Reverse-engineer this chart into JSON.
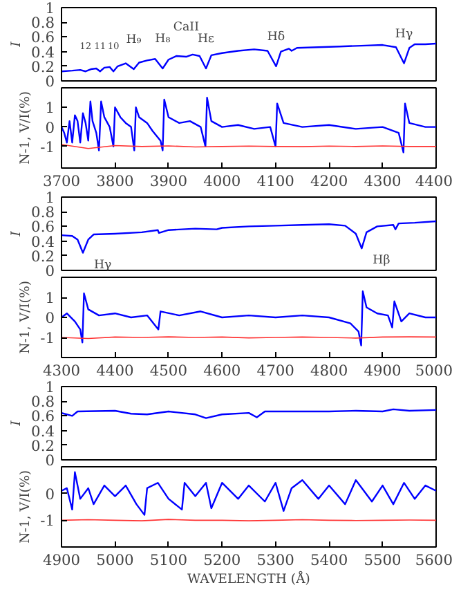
{
  "chart_data": [
    {
      "type": "line",
      "ylabel": "I",
      "xlim": [
        3700,
        4400
      ],
      "xticks": [
        3700,
        3800,
        3900,
        4000,
        4100,
        4200,
        4300,
        4400
      ],
      "ylim": [
        0,
        1
      ],
      "yticks": [
        0,
        0.2,
        0.4,
        0.6,
        0.8,
        1
      ],
      "tick_labels": "y",
      "grid": false,
      "annotations": [
        {
          "text": "12",
          "x": 3745,
          "y": 0.13
        },
        {
          "text": "11",
          "x": 3772,
          "y": 0.13
        },
        {
          "text": "10",
          "x": 3797,
          "y": 0.13
        },
        {
          "text": "H₉",
          "x": 3835,
          "y": 0.16
        },
        {
          "text": "H₈",
          "x": 3889,
          "y": 0.17
        },
        {
          "text": "CaII",
          "x": 3933,
          "y": 0.33
        },
        {
          "text": "Hε",
          "x": 3970,
          "y": 0.17
        },
        {
          "text": "Hδ",
          "x": 4101,
          "y": 0.2
        },
        {
          "text": "Hγ",
          "x": 4340,
          "y": 0.24
        }
      ],
      "series": [
        {
          "color": "#0000ff",
          "x": [
            3700,
            3720,
            3735,
            3745,
            3755,
            3765,
            3772,
            3780,
            3790,
            3797,
            3805,
            3820,
            3835,
            3845,
            3860,
            3875,
            3889,
            3900,
            3915,
            3933,
            3945,
            3958,
            3970,
            3980,
            4000,
            4030,
            4060,
            4085,
            4101,
            4110,
            4125,
            4130,
            4140,
            4180,
            4220,
            4260,
            4300,
            4325,
            4340,
            4350,
            4360,
            4380,
            4400
          ],
          "values": [
            0.13,
            0.14,
            0.15,
            0.13,
            0.16,
            0.17,
            0.13,
            0.18,
            0.19,
            0.13,
            0.2,
            0.24,
            0.16,
            0.25,
            0.28,
            0.3,
            0.17,
            0.29,
            0.34,
            0.33,
            0.36,
            0.34,
            0.17,
            0.35,
            0.38,
            0.41,
            0.43,
            0.41,
            0.2,
            0.4,
            0.44,
            0.41,
            0.45,
            0.46,
            0.47,
            0.48,
            0.49,
            0.46,
            0.24,
            0.45,
            0.5,
            0.5,
            0.51
          ]
        }
      ]
    },
    {
      "type": "line",
      "ylabel": "N-1, V/I(%)",
      "xlim": [
        3700,
        4400
      ],
      "xticks": [
        3700,
        3800,
        3900,
        4000,
        4100,
        4200,
        4300,
        4400
      ],
      "ylim": [
        -2.1,
        2
      ],
      "yticks": [
        -1,
        0,
        1
      ],
      "grid": false,
      "series": [
        {
          "color": "#0000ff",
          "x": [
            3700,
            3705,
            3710,
            3715,
            3720,
            3725,
            3730,
            3735,
            3740,
            3745,
            3750,
            3754,
            3758,
            3765,
            3770,
            3774,
            3780,
            3790,
            3797,
            3800,
            3810,
            3820,
            3830,
            3836,
            3839,
            3845,
            3860,
            3870,
            3885,
            3889,
            3892,
            3900,
            3920,
            3940,
            3960,
            3969,
            3972,
            3980,
            4000,
            4030,
            4060,
            4090,
            4100,
            4103,
            4115,
            4150,
            4200,
            4250,
            4300,
            4330,
            4339,
            4342,
            4350,
            4380,
            4400
          ],
          "values": [
            0,
            -0.3,
            -0.8,
            0.3,
            -0.8,
            0.6,
            0.3,
            -0.8,
            0.7,
            0.2,
            -0.7,
            1.3,
            0.3,
            -0.3,
            -1.2,
            1.3,
            0.5,
            0,
            -1,
            1,
            0.5,
            0.2,
            0,
            -1.2,
            1,
            0.5,
            0.2,
            -0.2,
            -0.7,
            -1.2,
            1.4,
            0.5,
            0.2,
            0.3,
            0,
            -1,
            1.5,
            0.3,
            0,
            0.1,
            -0.1,
            0,
            -1,
            1.2,
            0.2,
            0,
            0.1,
            -0.1,
            0,
            -0.3,
            -1.3,
            1.2,
            0.2,
            0,
            0
          ]
        },
        {
          "color": "#ff3333",
          "x": [
            3700,
            3750,
            3800,
            3850,
            3900,
            3950,
            4000,
            4050,
            4100,
            4150,
            4200,
            4250,
            4300,
            4350,
            4400
          ],
          "values": [
            -0.9,
            -1.1,
            -0.95,
            -1.0,
            -0.97,
            -1.02,
            -1.0,
            -0.98,
            -1.0,
            -1.01,
            -0.98,
            -1.0,
            -0.97,
            -1.0,
            -1.0
          ]
        }
      ]
    },
    {
      "type": "line",
      "ylabel": "I",
      "xlim": [
        4300,
        5000
      ],
      "xticks": [
        4300,
        4400,
        4500,
        4600,
        4700,
        4800,
        4900,
        5000
      ],
      "ylim": [
        0,
        1
      ],
      "yticks": [
        0,
        0.2,
        0.4,
        0.6,
        0.8,
        1
      ],
      "tick_labels": "y",
      "grid": false,
      "annotations": [
        {
          "text": "Hγ",
          "x": 4340,
          "y": 0.24
        },
        {
          "text": "Hβ",
          "x": 4861,
          "y": 0.3
        }
      ],
      "series": [
        {
          "color": "#0000ff",
          "x": [
            4300,
            4320,
            4330,
            4340,
            4350,
            4360,
            4400,
            4450,
            4480,
            4482,
            4500,
            4550,
            4590,
            4600,
            4650,
            4700,
            4750,
            4800,
            4830,
            4850,
            4861,
            4870,
            4890,
            4920,
            4924,
            4930,
            4960,
            5000
          ],
          "values": [
            0.48,
            0.47,
            0.42,
            0.24,
            0.42,
            0.49,
            0.5,
            0.52,
            0.55,
            0.51,
            0.55,
            0.57,
            0.56,
            0.58,
            0.6,
            0.61,
            0.62,
            0.63,
            0.61,
            0.5,
            0.3,
            0.52,
            0.6,
            0.62,
            0.56,
            0.64,
            0.65,
            0.67
          ]
        }
      ]
    },
    {
      "type": "line",
      "ylabel": "N-1, V/I(%)",
      "xlim": [
        4300,
        5000
      ],
      "xticks": [
        4300,
        4400,
        4500,
        4600,
        4700,
        4800,
        4900,
        5000
      ],
      "ylim": [
        -2,
        2
      ],
      "yticks": [
        -1,
        0,
        1
      ],
      "grid": false,
      "series": [
        {
          "color": "#0000ff",
          "x": [
            4300,
            4310,
            4325,
            4335,
            4339,
            4342,
            4350,
            4370,
            4400,
            4430,
            4460,
            4481,
            4485,
            4520,
            4560,
            4600,
            4650,
            4700,
            4750,
            4800,
            4840,
            4855,
            4860,
            4863,
            4870,
            4890,
            4910,
            4918,
            4922,
            4935,
            4950,
            4980,
            5000
          ],
          "values": [
            0,
            0.2,
            -0.2,
            -0.6,
            -1.25,
            1.2,
            0.4,
            0.1,
            0.2,
            0,
            0.1,
            -0.6,
            0.3,
            0.1,
            0.3,
            0,
            0.1,
            0,
            0.1,
            0,
            -0.3,
            -0.7,
            -1.4,
            1.3,
            0.5,
            0.2,
            0.1,
            -0.5,
            0.8,
            -0.2,
            0.2,
            0,
            0
          ]
        },
        {
          "color": "#ff3333",
          "x": [
            4300,
            4350,
            4400,
            4450,
            4500,
            4550,
            4600,
            4650,
            4700,
            4750,
            4800,
            4850,
            4900,
            4950,
            5000
          ],
          "values": [
            -1.0,
            -1.05,
            -0.98,
            -1.0,
            -0.97,
            -1.0,
            -0.98,
            -1.02,
            -1.0,
            -0.98,
            -1.0,
            -1.03,
            -0.98,
            -0.97,
            -0.98
          ]
        }
      ]
    },
    {
      "type": "line",
      "ylabel": "I",
      "xlim": [
        4900,
        5600
      ],
      "xticks": [
        4900,
        5000,
        5100,
        5200,
        5300,
        5400,
        5500,
        5600
      ],
      "ylim": [
        0,
        1
      ],
      "yticks": [
        0,
        0.2,
        0.4,
        0.6,
        0.8,
        1
      ],
      "tick_labels": "y",
      "grid": false,
      "series": [
        {
          "color": "#0000ff",
          "x": [
            4900,
            4920,
            4930,
            5000,
            5030,
            5060,
            5100,
            5150,
            5170,
            5200,
            5250,
            5265,
            5280,
            5350,
            5400,
            5450,
            5500,
            5520,
            5550,
            5600
          ],
          "values": [
            0.64,
            0.6,
            0.66,
            0.67,
            0.63,
            0.62,
            0.66,
            0.62,
            0.57,
            0.62,
            0.64,
            0.58,
            0.66,
            0.66,
            0.66,
            0.67,
            0.66,
            0.69,
            0.67,
            0.68
          ]
        }
      ]
    },
    {
      "type": "line",
      "ylabel": "N-1, V/I(%)",
      "xlabel": "WAVELENGTH (Å)",
      "xlim": [
        4900,
        5600
      ],
      "xticks": [
        4900,
        5000,
        5100,
        5200,
        5300,
        5400,
        5500,
        5600
      ],
      "ylim": [
        -2,
        1
      ],
      "yticks": [
        -1,
        0
      ],
      "grid": false,
      "series": [
        {
          "color": "#0000ff",
          "x": [
            4900,
            4910,
            4920,
            4925,
            4935,
            4950,
            4960,
            4980,
            5000,
            5020,
            5040,
            5055,
            5060,
            5080,
            5100,
            5125,
            5130,
            5150,
            5170,
            5180,
            5200,
            5230,
            5250,
            5280,
            5300,
            5315,
            5330,
            5350,
            5380,
            5400,
            5430,
            5450,
            5480,
            5500,
            5520,
            5540,
            5560,
            5580,
            5600
          ],
          "values": [
            0.1,
            0.2,
            -0.6,
            0.8,
            -0.2,
            0.2,
            -0.4,
            0.3,
            -0.1,
            0.3,
            -0.4,
            -0.8,
            0.2,
            0.4,
            -0.2,
            -0.6,
            0.4,
            -0.1,
            0.4,
            -0.55,
            0.4,
            -0.2,
            0.3,
            -0.3,
            0.4,
            -0.65,
            0.2,
            0.5,
            -0.2,
            0.3,
            -0.4,
            0.5,
            -0.3,
            0.3,
            -0.4,
            0.4,
            -0.2,
            0.3,
            0.1
          ]
        },
        {
          "color": "#ff3333",
          "x": [
            4900,
            4950,
            5000,
            5050,
            5100,
            5150,
            5200,
            5250,
            5300,
            5350,
            5400,
            5450,
            5500,
            5550,
            5600
          ],
          "values": [
            -1.0,
            -0.98,
            -1.0,
            -1.02,
            -0.97,
            -1.0,
            -1.0,
            -1.02,
            -1.0,
            -0.98,
            -1.0,
            -1.01,
            -1.0,
            -0.99,
            -1.0
          ]
        }
      ]
    }
  ]
}
